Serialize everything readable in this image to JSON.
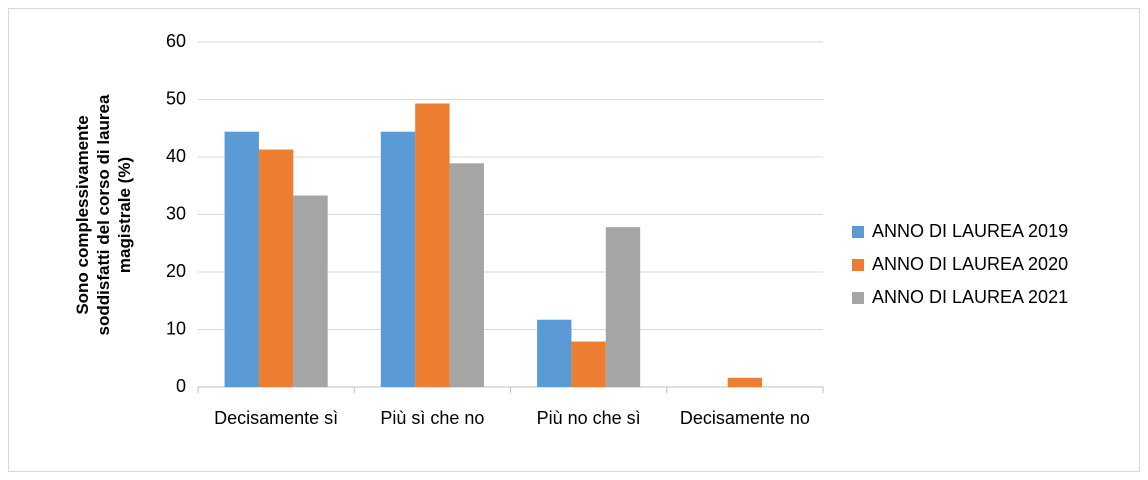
{
  "chart_data": {
    "type": "bar",
    "ylabel": "Sono complessivamente soddisfatti del corso di laurea magistrale (%)",
    "categories": [
      "Decisamente sì",
      "Più sì che no",
      "Più no che sì",
      "Decisamente no"
    ],
    "series": [
      {
        "name": "ANNO DI LAUREA 2019",
        "color": "#5b9bd5",
        "values": [
          44.4,
          44.4,
          11.7,
          0
        ]
      },
      {
        "name": "ANNO DI LAUREA 2020",
        "color": "#ed7d31",
        "values": [
          41.3,
          49.3,
          7.9,
          1.6
        ]
      },
      {
        "name": "ANNO DI LAUREA 2021",
        "color": "#a5a5a5",
        "values": [
          33.3,
          38.9,
          27.8,
          0
        ]
      }
    ],
    "ylim": [
      0,
      60
    ],
    "yticks": [
      0,
      10,
      20,
      30,
      40,
      50,
      60
    ],
    "grid": true,
    "legend": "right"
  }
}
